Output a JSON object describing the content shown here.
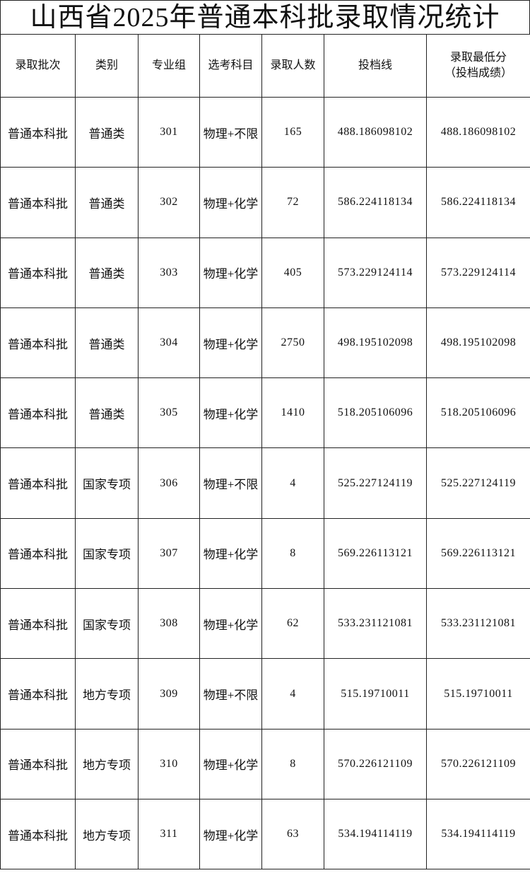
{
  "title": "山西省2025年普通本科批录取情况统计",
  "headers": [
    "录取批次",
    "类别",
    "专业组",
    "选考科目",
    "录取人数",
    "投档线",
    "录取最低分",
    "（投档成绩）"
  ],
  "rows": [
    [
      "普通本科批",
      "普通类",
      "301",
      "物理+不限",
      "165",
      "488.186098102",
      "488.186098102"
    ],
    [
      "普通本科批",
      "普通类",
      "302",
      "物理+化学",
      "72",
      "586.224118134",
      "586.224118134"
    ],
    [
      "普通本科批",
      "普通类",
      "303",
      "物理+化学",
      "405",
      "573.229124114",
      "573.229124114"
    ],
    [
      "普通本科批",
      "普通类",
      "304",
      "物理+化学",
      "2750",
      "498.195102098",
      "498.195102098"
    ],
    [
      "普通本科批",
      "普通类",
      "305",
      "物理+化学",
      "1410",
      "518.205106096",
      "518.205106096"
    ],
    [
      "普通本科批",
      "国家专项",
      "306",
      "物理+不限",
      "4",
      "525.227124119",
      "525.227124119"
    ],
    [
      "普通本科批",
      "国家专项",
      "307",
      "物理+化学",
      "8",
      "569.226113121",
      "569.226113121"
    ],
    [
      "普通本科批",
      "国家专项",
      "308",
      "物理+化学",
      "62",
      "533.231121081",
      "533.231121081"
    ],
    [
      "普通本科批",
      "地方专项",
      "309",
      "物理+不限",
      "4",
      "515.19710011",
      "515.19710011"
    ],
    [
      "普通本科批",
      "地方专项",
      "310",
      "物理+化学",
      "8",
      "570.226121109",
      "570.226121109"
    ],
    [
      "普通本科批",
      "地方专项",
      "311",
      "物理+化学",
      "63",
      "534.194114119",
      "534.194114119"
    ]
  ]
}
